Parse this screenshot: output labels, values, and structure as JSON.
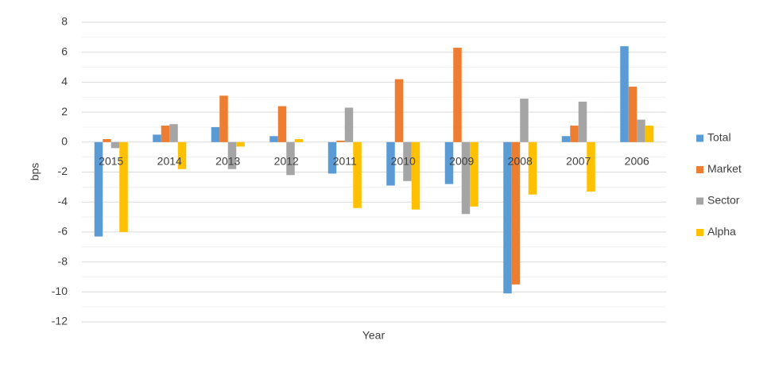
{
  "chart_data": {
    "type": "bar",
    "x_label": "Year",
    "y_label": "bps",
    "categories": [
      "2015",
      "2014",
      "2013",
      "2012",
      "2011",
      "2010",
      "2009",
      "2008",
      "2007",
      "2006"
    ],
    "series": [
      {
        "name": "Total",
        "color": "#5b9bd5",
        "values": [
          -6.3,
          0.5,
          1.0,
          0.4,
          -2.1,
          -2.9,
          -2.8,
          -10.1,
          0.4,
          6.4
        ]
      },
      {
        "name": "Market",
        "color": "#ed7d31",
        "values": [
          0.2,
          1.1,
          3.1,
          2.4,
          0.1,
          4.2,
          6.3,
          -9.5,
          1.1,
          3.7
        ]
      },
      {
        "name": "Sector",
        "color": "#a5a5a5",
        "values": [
          -0.4,
          1.2,
          -1.8,
          -2.2,
          2.3,
          -2.6,
          -4.8,
          2.9,
          2.7,
          1.5
        ]
      },
      {
        "name": "Alpha",
        "color": "#ffc000",
        "values": [
          -6.0,
          -1.8,
          -0.3,
          0.2,
          -4.4,
          -4.5,
          -4.3,
          -3.5,
          -3.3,
          1.1
        ]
      }
    ],
    "ylim": [
      -12,
      8
    ],
    "yticks": [
      -12,
      -10,
      -8,
      -6,
      -4,
      -2,
      0,
      2,
      4,
      6,
      8
    ],
    "minor_yticks": [
      -11,
      -9,
      -7,
      -5,
      -3,
      -1,
      1,
      3,
      5,
      7
    ],
    "grid": true,
    "legend": "right"
  }
}
